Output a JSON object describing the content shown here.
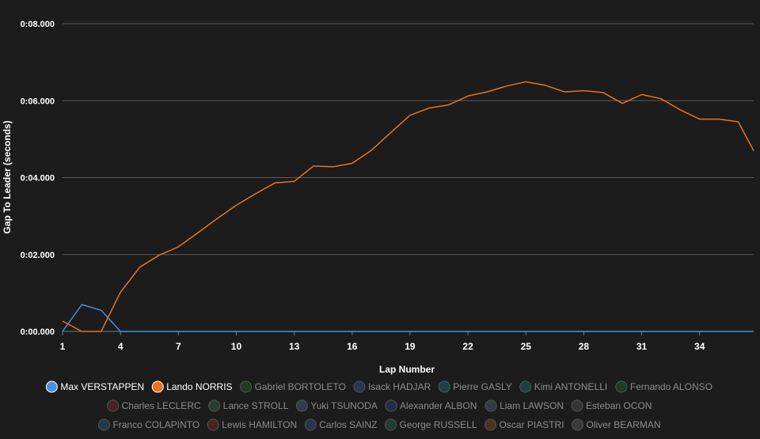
{
  "chart_data": {
    "type": "line",
    "xlabel": "Lap Number",
    "ylabel": "Gap To Leader (seconds)",
    "xlim": [
      1,
      36.8
    ],
    "ylim": [
      0,
      8
    ],
    "x_ticks": [
      1,
      4,
      7,
      10,
      13,
      16,
      19,
      22,
      25,
      28,
      31,
      34
    ],
    "y_ticks": [
      {
        "value": 0,
        "label": "0:00.000"
      },
      {
        "value": 2,
        "label": "0:02.000"
      },
      {
        "value": 4,
        "label": "0:04.000"
      },
      {
        "value": 6,
        "label": "0:06.000"
      },
      {
        "value": 8,
        "label": "0:08.000"
      }
    ],
    "grid": "horizontal",
    "legend_position": "bottom",
    "series": [
      {
        "name": "Max VERSTAPPEN",
        "color": "#4a90e2",
        "active": true,
        "x": [
          1,
          2,
          3,
          4,
          5,
          6,
          7,
          8,
          9,
          10,
          11,
          12,
          13,
          14,
          15,
          16,
          17,
          18,
          19,
          20,
          21,
          22,
          23,
          24,
          25,
          26,
          27,
          28,
          29,
          30,
          31,
          32,
          33,
          34,
          35,
          36,
          36.8
        ],
        "values": [
          0,
          0.7,
          0.55,
          0,
          0,
          0,
          0,
          0,
          0,
          0,
          0,
          0,
          0,
          0,
          0,
          0,
          0,
          0,
          0,
          0,
          0,
          0,
          0,
          0,
          0,
          0,
          0,
          0,
          0,
          0,
          0,
          0,
          0,
          0,
          0,
          0,
          0
        ]
      },
      {
        "name": "Lando NORRIS",
        "color": "#e8731e",
        "active": true,
        "x": [
          1,
          2,
          3,
          4,
          5,
          6,
          7,
          8,
          9,
          10,
          11,
          12,
          13,
          14,
          15,
          16,
          17,
          18,
          19,
          20,
          21,
          22,
          23,
          24,
          25,
          26,
          27,
          28,
          29,
          30,
          31,
          32,
          33,
          34,
          35,
          36,
          36.8
        ],
        "values": [
          0.27,
          0,
          0,
          1.02,
          1.67,
          1.98,
          2.2,
          2.56,
          2.93,
          3.28,
          3.58,
          3.86,
          3.9,
          4.3,
          4.28,
          4.37,
          4.71,
          5.17,
          5.62,
          5.81,
          5.89,
          6.12,
          6.23,
          6.38,
          6.49,
          6.4,
          6.23,
          6.26,
          6.21,
          5.93,
          6.16,
          6.05,
          5.76,
          5.52,
          5.52,
          5.45,
          4.7
        ]
      }
    ],
    "legend": [
      {
        "name": "Max VERSTAPPEN",
        "color": "#4a90e2",
        "active": true
      },
      {
        "name": "Lando NORRIS",
        "color": "#e8731e",
        "active": true
      },
      {
        "name": "Gabriel BORTOLETO",
        "color": "#1f3d1f",
        "active": false
      },
      {
        "name": "Isack HADJAR",
        "color": "#2a3550",
        "active": false
      },
      {
        "name": "Pierre GASLY",
        "color": "#1f3f48",
        "active": false
      },
      {
        "name": "Kimi ANTONELLI",
        "color": "#1f4040",
        "active": false
      },
      {
        "name": "Fernando ALONSO",
        "color": "#213a2c",
        "active": false
      },
      {
        "name": "Charles LECLERC",
        "color": "#4a2128",
        "active": false
      },
      {
        "name": "Lance STROLL",
        "color": "#293d32",
        "active": false
      },
      {
        "name": "Yuki TSUNODA",
        "color": "#343a4e",
        "active": false
      },
      {
        "name": "Alexander ALBON",
        "color": "#1f2c4c",
        "active": false
      },
      {
        "name": "Liam LAWSON",
        "color": "#343848",
        "active": false
      },
      {
        "name": "Esteban OCON",
        "color": "#343434",
        "active": false
      },
      {
        "name": "Franco COLAPINTO",
        "color": "#223a48",
        "active": false
      },
      {
        "name": "Lewis HAMILTON",
        "color": "#4a2123",
        "active": false
      },
      {
        "name": "Carlos SAINZ",
        "color": "#283450",
        "active": false
      },
      {
        "name": "George RUSSELL",
        "color": "#1f3d33",
        "active": false
      },
      {
        "name": "Oscar PIASTRI",
        "color": "#4a3420",
        "active": false
      },
      {
        "name": "Oliver BEARMAN",
        "color": "#3a3a3e",
        "active": false
      }
    ]
  }
}
